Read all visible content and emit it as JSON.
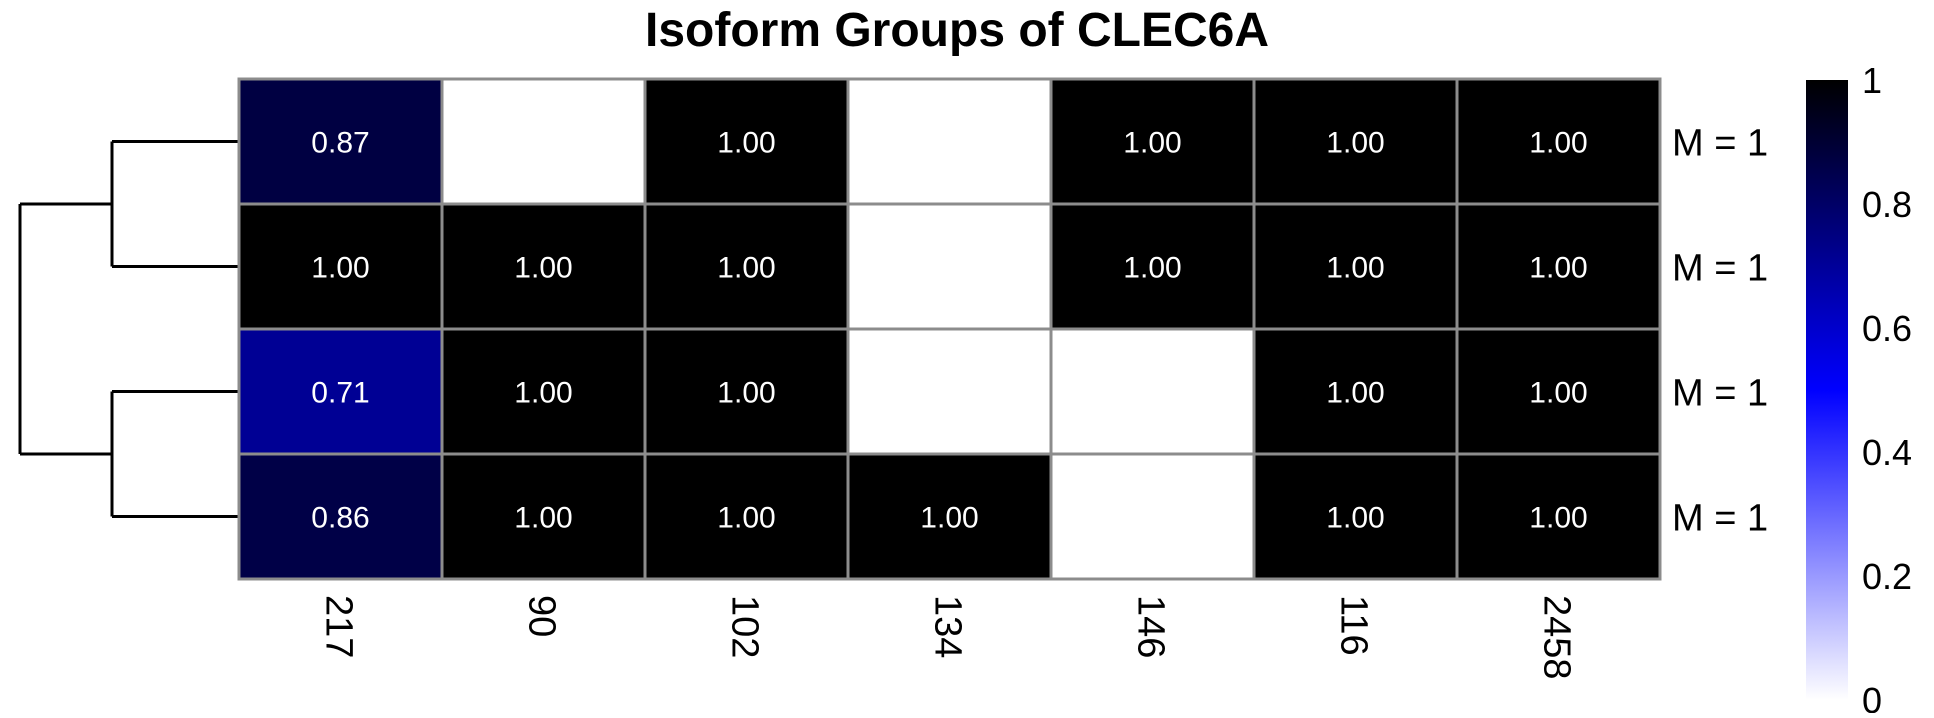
{
  "chart_data": {
    "type": "heatmap",
    "title": "Isoform Groups of CLEC6A",
    "columns": [
      "217",
      "90",
      "102",
      "134",
      "146",
      "116",
      "2458"
    ],
    "rows": [
      "M = 1",
      "M = 1",
      "M = 1",
      "M = 1"
    ],
    "values": [
      [
        0.87,
        null,
        1.0,
        null,
        1.0,
        1.0,
        1.0
      ],
      [
        1.0,
        1.0,
        1.0,
        null,
        1.0,
        1.0,
        1.0
      ],
      [
        0.71,
        1.0,
        1.0,
        null,
        null,
        1.0,
        1.0
      ],
      [
        0.86,
        1.0,
        1.0,
        1.0,
        null,
        1.0,
        1.0
      ]
    ],
    "value_range": [
      0,
      1
    ],
    "colorscale": [
      "#ffffff",
      "#0000ff",
      "#000000"
    ],
    "legend": {
      "placement": "right",
      "ticks": [
        "0",
        "0.2",
        "0.4",
        "0.6",
        "0.8",
        "1"
      ]
    },
    "dendrogram": {
      "side": "left",
      "merges": [
        [
          0,
          1
        ],
        [
          2,
          3
        ],
        [
          "a",
          "b"
        ]
      ]
    }
  }
}
